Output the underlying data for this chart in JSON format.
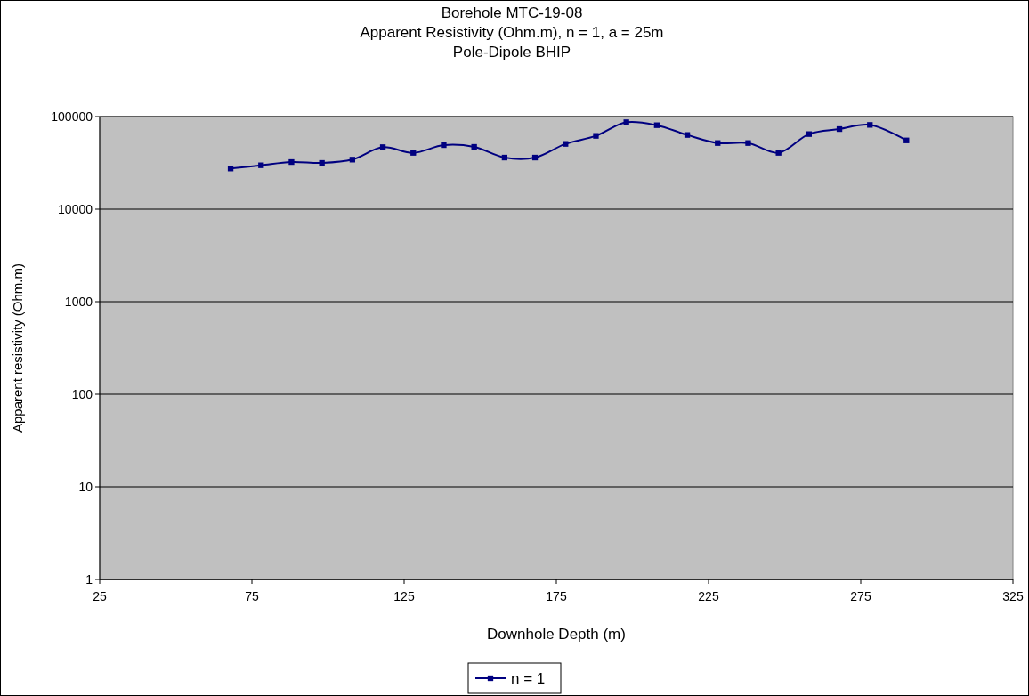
{
  "chart_data": {
    "type": "line",
    "title": "Borehole MTC-19-08",
    "subtitle": "Apparent Resistivity (Ohm.m), n = 1, a = 25m\nPole-Dipole BHIP",
    "xlabel": "Downhole Depth (m)",
    "ylabel": "Apparent resistivity (Ohm.m)",
    "x": [
      68,
      78,
      88,
      98,
      108,
      118,
      128,
      138,
      148,
      158,
      168,
      178,
      188,
      198,
      208,
      218,
      228,
      238,
      248,
      258,
      268,
      278,
      290
    ],
    "series": [
      {
        "name": "n = 1",
        "color": "#000080",
        "values": [
          27500,
          29800,
          32300,
          31600,
          34300,
          46800,
          40600,
          49200,
          47100,
          36100,
          36100,
          50700,
          61900,
          86900,
          80700,
          63300,
          51800,
          51800,
          40600,
          64700,
          73300,
          81300,
          55300
        ]
      }
    ],
    "xlim": [
      25,
      325
    ],
    "xticks": [
      25,
      75,
      125,
      175,
      225,
      275,
      325
    ],
    "ylim": [
      1,
      100000
    ],
    "yticks": [
      1,
      10,
      100,
      1000,
      10000,
      100000
    ],
    "log": "y",
    "grid": "y",
    "legend": "bottom",
    "marker": "square",
    "line_style": "solid"
  }
}
